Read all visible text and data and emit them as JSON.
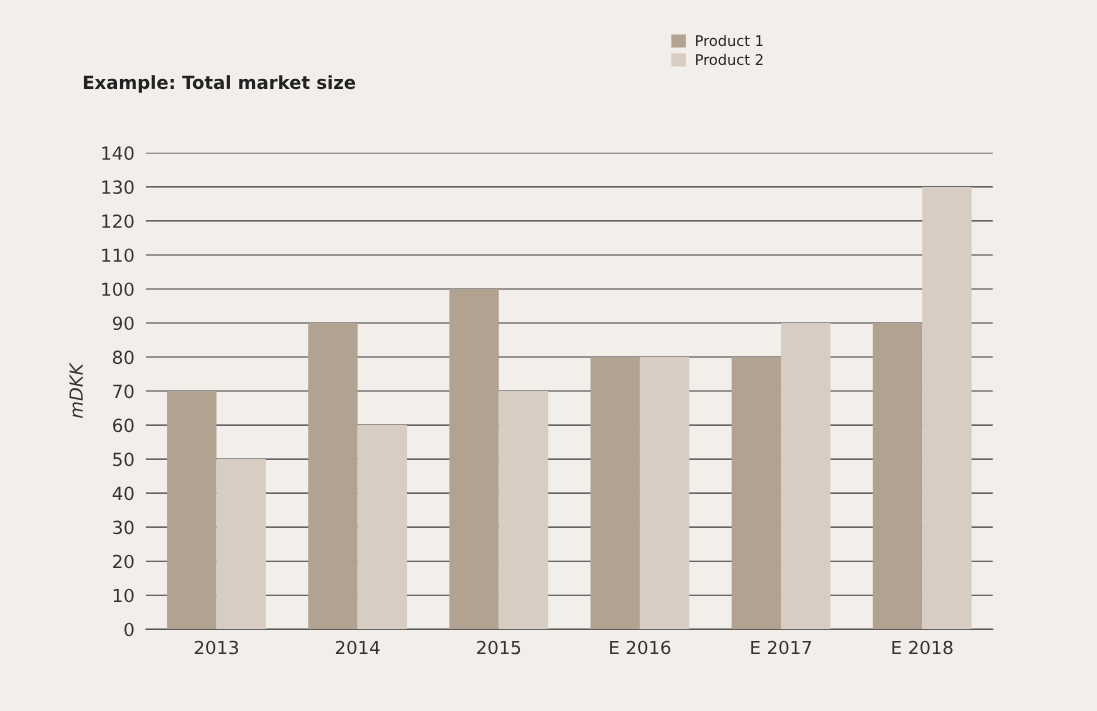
{
  "chart_data": {
    "type": "bar",
    "title": "Example: Total market size",
    "ylabel": "mDKK",
    "categories": [
      "2013",
      "2014",
      "2015",
      "E 2016",
      "E 2017",
      "E 2018"
    ],
    "series": [
      {
        "name": "Product 1",
        "color": "#b2a291",
        "values": [
          70,
          90,
          100,
          80,
          80,
          90
        ]
      },
      {
        "name": "Product 2",
        "color": "#d8cdc2",
        "values": [
          50,
          60,
          70,
          80,
          90,
          130
        ]
      }
    ],
    "ylim": [
      0,
      140
    ],
    "yticks": [
      0,
      10,
      20,
      30,
      40,
      50,
      60,
      70,
      80,
      90,
      100,
      110,
      120,
      130,
      140
    ],
    "grid": "y",
    "legend": "top right"
  }
}
